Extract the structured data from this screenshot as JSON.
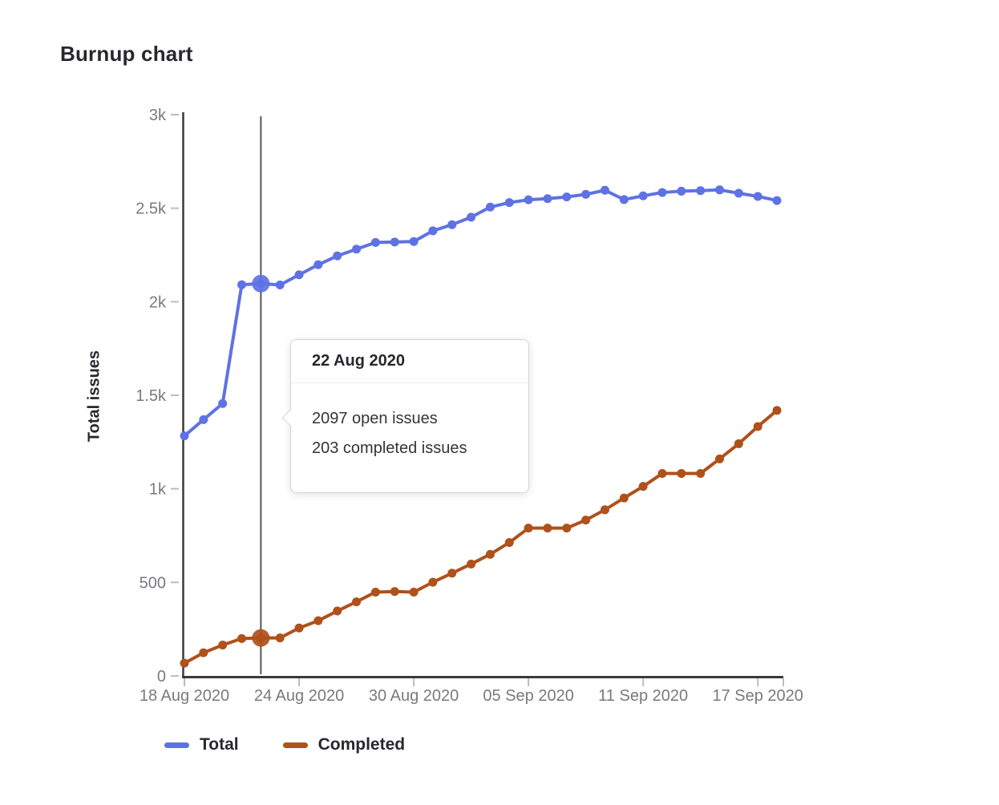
{
  "page": {
    "title": "Burnup chart"
  },
  "chart_data": {
    "type": "line",
    "title": "Burnup chart",
    "xlabel": "",
    "ylabel": "Total issues",
    "ylim": [
      0,
      3000
    ],
    "grid": false,
    "legend_position": "bottom",
    "y_tick_labels": [
      "0",
      "500",
      "1k",
      "1.5k",
      "2k",
      "2.5k",
      "3k"
    ],
    "y_tick_values": [
      0,
      500,
      1000,
      1500,
      2000,
      2500,
      3000
    ],
    "x_tick_labels": [
      "18 Aug 2020",
      "24 Aug 2020",
      "30 Aug 2020",
      "05 Sep 2020",
      "11 Sep 2020",
      "17 Sep 2020"
    ],
    "x_tick_days": [
      0,
      6,
      12,
      18,
      24,
      30
    ],
    "dates": [
      "18 Aug 2020",
      "19 Aug 2020",
      "20 Aug 2020",
      "21 Aug 2020",
      "22 Aug 2020",
      "23 Aug 2020",
      "24 Aug 2020",
      "25 Aug 2020",
      "26 Aug 2020",
      "27 Aug 2020",
      "28 Aug 2020",
      "29 Aug 2020",
      "30 Aug 2020",
      "31 Aug 2020",
      "01 Sep 2020",
      "02 Sep 2020",
      "03 Sep 2020",
      "04 Sep 2020",
      "05 Sep 2020",
      "06 Sep 2020",
      "07 Sep 2020",
      "08 Sep 2020",
      "09 Sep 2020",
      "10 Sep 2020",
      "11 Sep 2020",
      "12 Sep 2020",
      "13 Sep 2020",
      "14 Sep 2020",
      "15 Sep 2020",
      "16 Sep 2020",
      "17 Sep 2020",
      "18 Sep 2020"
    ],
    "series": [
      {
        "name": "Total",
        "color": "#5e72e4",
        "values": [
          1283,
          1370,
          1456,
          2091,
          2097,
          2090,
          2144,
          2198,
          2245,
          2281,
          2317,
          2319,
          2322,
          2379,
          2412,
          2452,
          2506,
          2530,
          2545,
          2551,
          2560,
          2574,
          2596,
          2546,
          2566,
          2584,
          2591,
          2594,
          2598,
          2580,
          2563,
          2541
        ]
      },
      {
        "name": "Completed",
        "color": "#b0501a",
        "values": [
          68,
          124,
          165,
          200,
          203,
          203,
          256,
          295,
          347,
          396,
          448,
          451,
          448,
          501,
          549,
          598,
          650,
          713,
          790,
          790,
          790,
          833,
          888,
          951,
          1013,
          1082,
          1082,
          1082,
          1160,
          1241,
          1333,
          1419
        ]
      }
    ],
    "highlight_index": 4,
    "highlight_date": "22 Aug 2020"
  },
  "tooltip": {
    "title": "22 Aug 2020",
    "line1": "2097 open issues",
    "line2": "203 completed issues"
  },
  "legend": {
    "items": [
      {
        "label": "Total",
        "color": "#5e72e4"
      },
      {
        "label": "Completed",
        "color": "#b0501a"
      }
    ]
  },
  "colors": {
    "axis": "#3a393f",
    "tick_mark": "#bcbbc1",
    "muted_text": "#7a797f",
    "dark_text": "#28272d",
    "hover_line": "#56555c",
    "background": "#ffffff"
  }
}
